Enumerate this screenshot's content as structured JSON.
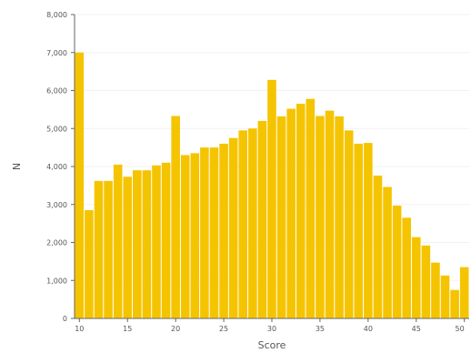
{
  "chart_data": {
    "type": "bar",
    "xlabel": "Score",
    "ylabel": "N",
    "xlim": [
      9.5,
      50.5
    ],
    "ylim": [
      0,
      8000
    ],
    "grid": true,
    "bar_color": "#f5c400",
    "categories": [
      10,
      11,
      12,
      13,
      14,
      15,
      16,
      17,
      18,
      19,
      20,
      21,
      22,
      23,
      24,
      25,
      26,
      27,
      28,
      29,
      30,
      31,
      32,
      33,
      34,
      35,
      36,
      37,
      38,
      39,
      40,
      41,
      42,
      43,
      44,
      45,
      46,
      47,
      48,
      49,
      50
    ],
    "values": [
      7000,
      2850,
      3620,
      3620,
      4050,
      3730,
      3900,
      3900,
      4030,
      4100,
      5330,
      4300,
      4350,
      4500,
      4500,
      4600,
      4750,
      4950,
      5000,
      5200,
      6280,
      5320,
      5520,
      5650,
      5780,
      5330,
      5470,
      5320,
      4950,
      4600,
      4620,
      3760,
      3460,
      2970,
      2650,
      2140,
      1920,
      1470,
      1130,
      750,
      1350
    ],
    "x_ticks": [
      "10",
      "15",
      "20",
      "25",
      "30",
      "35",
      "40",
      "45",
      "50"
    ],
    "x_tick_values": [
      10,
      15,
      20,
      25,
      30,
      35,
      40,
      45,
      50
    ],
    "y_ticks": [
      "0",
      "1,000",
      "2,000",
      "3,000",
      "4,000",
      "5,000",
      "6,000",
      "7,000",
      "8,000"
    ],
    "y_tick_values": [
      0,
      1000,
      2000,
      3000,
      4000,
      5000,
      6000,
      7000,
      8000
    ]
  }
}
